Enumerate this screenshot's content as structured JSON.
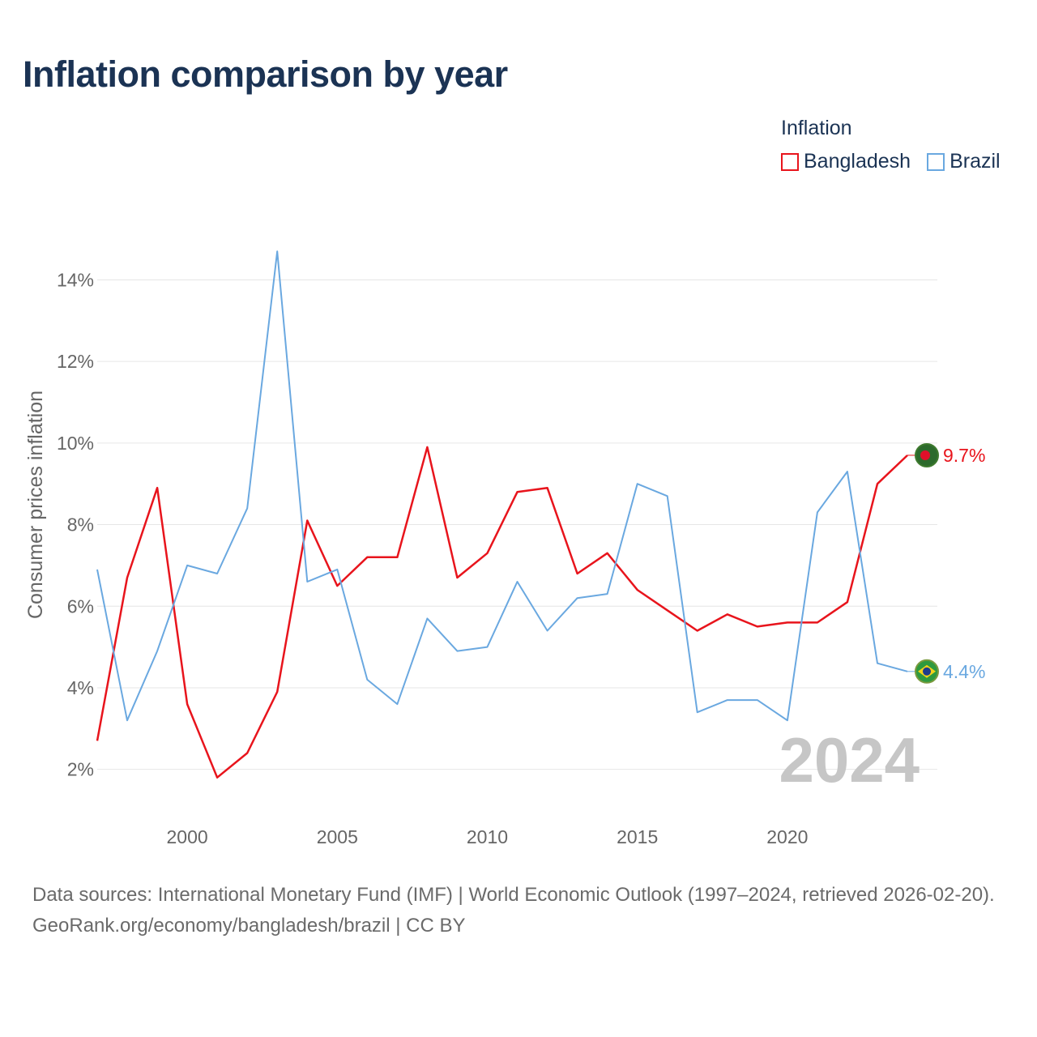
{
  "title": "Inflation comparison by year",
  "legend": {
    "title": "Inflation",
    "items": [
      {
        "label": "Bangladesh",
        "color": "#e8141c"
      },
      {
        "label": "Brazil",
        "color": "#6aa8e0"
      }
    ]
  },
  "footer": {
    "sources": "Data sources: International Monetary Fund (IMF) | World Economic Outlook (1997–2024, retrieved 2026-02-20).",
    "url": "GeoRank.org/economy/bangladesh/brazil | CC BY"
  },
  "chart_data": {
    "type": "line",
    "title": "Inflation comparison by year",
    "xlabel": "",
    "ylabel": "Consumer prices inflation",
    "xlim": [
      1997,
      2024
    ],
    "ylim": [
      1,
      15.3
    ],
    "x_ticks": [
      2000,
      2005,
      2010,
      2015,
      2020
    ],
    "y_ticks": [
      2,
      4,
      6,
      8,
      10,
      12,
      14
    ],
    "y_tick_labels": [
      "2%",
      "4%",
      "6%",
      "8%",
      "10%",
      "12%",
      "14%"
    ],
    "grid": true,
    "legend_position": "top-right",
    "year_watermark": "2024",
    "x": [
      1997,
      1998,
      1999,
      2000,
      2001,
      2002,
      2003,
      2004,
      2005,
      2006,
      2007,
      2008,
      2009,
      2010,
      2011,
      2012,
      2013,
      2014,
      2015,
      2016,
      2017,
      2018,
      2019,
      2020,
      2021,
      2022,
      2023,
      2024
    ],
    "series": [
      {
        "name": "Bangladesh",
        "color": "#e8141c",
        "values": [
          2.7,
          6.7,
          8.9,
          3.6,
          1.8,
          2.4,
          3.9,
          8.1,
          6.5,
          7.2,
          7.2,
          9.9,
          6.7,
          7.3,
          8.8,
          8.9,
          6.8,
          7.3,
          6.4,
          5.9,
          5.4,
          5.8,
          5.5,
          5.6,
          5.6,
          6.1,
          9.0,
          9.7
        ],
        "end_label": "9.7%"
      },
      {
        "name": "Brazil",
        "color": "#6aa8e0",
        "values": [
          6.9,
          3.2,
          4.9,
          7.0,
          6.8,
          8.4,
          14.7,
          6.6,
          6.9,
          4.2,
          3.6,
          5.7,
          4.9,
          5.0,
          6.6,
          5.4,
          6.2,
          6.3,
          9.0,
          8.7,
          3.4,
          3.7,
          3.7,
          3.2,
          8.3,
          9.3,
          4.6,
          4.4
        ],
        "end_label": "4.4%"
      }
    ]
  }
}
